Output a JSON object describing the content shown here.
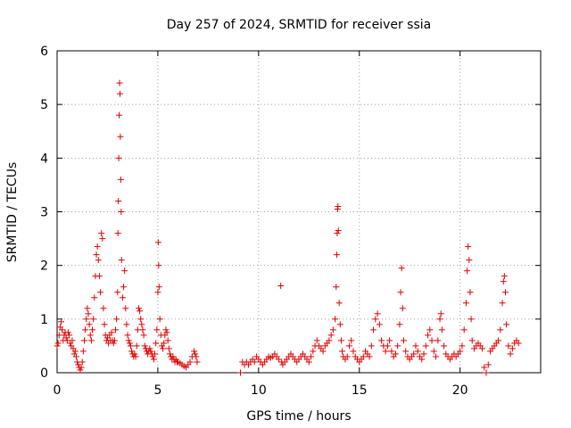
{
  "chart_data": {
    "type": "scatter",
    "title": "Day 257 of 2024, SRMTID for receiver ssia",
    "xlabel": "GPS time / hours",
    "ylabel": "SRMTID / TECUs",
    "xlim": [
      0,
      24
    ],
    "ylim": [
      0,
      6
    ],
    "xticks": [
      0,
      5,
      10,
      15,
      20
    ],
    "yticks": [
      0,
      1,
      2,
      3,
      4,
      5,
      6
    ],
    "xtick_labels": [
      "0",
      "5",
      "10",
      "15",
      "20"
    ],
    "ytick_labels": [
      "0",
      "1",
      "2",
      "3",
      "4",
      "5",
      "6"
    ],
    "grid": true,
    "marker": "+",
    "marker_color": "#e00000",
    "series": [
      {
        "name": "SRMTID",
        "points": [
          [
            0.0,
            0.5
          ],
          [
            0.05,
            0.55
          ],
          [
            0.1,
            0.7
          ],
          [
            0.15,
            0.85
          ],
          [
            0.2,
            0.95
          ],
          [
            0.25,
            0.8
          ],
          [
            0.3,
            0.6
          ],
          [
            0.35,
            0.7
          ],
          [
            0.4,
            0.75
          ],
          [
            0.45,
            0.65
          ],
          [
            0.5,
            0.6
          ],
          [
            0.55,
            0.75
          ],
          [
            0.6,
            0.7
          ],
          [
            0.65,
            0.55
          ],
          [
            0.7,
            0.5
          ],
          [
            0.75,
            0.6
          ],
          [
            0.8,
            0.45
          ],
          [
            0.85,
            0.35
          ],
          [
            0.9,
            0.4
          ],
          [
            0.95,
            0.3
          ],
          [
            1.0,
            0.2
          ],
          [
            1.05,
            0.15
          ],
          [
            1.1,
            0.1
          ],
          [
            1.15,
            0.05
          ],
          [
            1.2,
            0.1
          ],
          [
            1.25,
            0.2
          ],
          [
            1.3,
            0.4
          ],
          [
            1.35,
            0.6
          ],
          [
            1.4,
            0.8
          ],
          [
            1.45,
            1.0
          ],
          [
            1.5,
            1.2
          ],
          [
            1.55,
            1.1
          ],
          [
            1.6,
            0.9
          ],
          [
            1.65,
            0.7
          ],
          [
            1.7,
            0.6
          ],
          [
            1.75,
            0.8
          ],
          [
            1.8,
            1.0
          ],
          [
            1.85,
            1.4
          ],
          [
            1.9,
            1.8
          ],
          [
            1.95,
            2.2
          ],
          [
            2.0,
            2.35
          ],
          [
            2.05,
            2.1
          ],
          [
            2.1,
            1.8
          ],
          [
            2.15,
            1.5
          ],
          [
            2.2,
            2.6
          ],
          [
            2.25,
            2.5
          ],
          [
            2.3,
            1.2
          ],
          [
            2.35,
            0.9
          ],
          [
            2.4,
            0.7
          ],
          [
            2.45,
            0.6
          ],
          [
            2.5,
            0.65
          ],
          [
            2.55,
            0.55
          ],
          [
            2.6,
            0.7
          ],
          [
            2.65,
            0.6
          ],
          [
            2.7,
            0.75
          ],
          [
            2.75,
            0.6
          ],
          [
            2.8,
            0.55
          ],
          [
            2.85,
            0.6
          ],
          [
            2.9,
            0.8
          ],
          [
            2.95,
            1.0
          ],
          [
            3.0,
            1.5
          ],
          [
            3.02,
            2.6
          ],
          [
            3.04,
            3.2
          ],
          [
            3.06,
            4.0
          ],
          [
            3.08,
            4.8
          ],
          [
            3.1,
            5.4
          ],
          [
            3.12,
            5.2
          ],
          [
            3.14,
            4.4
          ],
          [
            3.16,
            3.6
          ],
          [
            3.18,
            3.0
          ],
          [
            3.2,
            2.1
          ],
          [
            3.25,
            1.4
          ],
          [
            3.3,
            1.6
          ],
          [
            3.35,
            1.9
          ],
          [
            3.4,
            1.2
          ],
          [
            3.45,
            0.9
          ],
          [
            3.5,
            0.7
          ],
          [
            3.55,
            0.6
          ],
          [
            3.6,
            0.55
          ],
          [
            3.65,
            0.5
          ],
          [
            3.7,
            0.4
          ],
          [
            3.75,
            0.35
          ],
          [
            3.8,
            0.3
          ],
          [
            3.85,
            0.35
          ],
          [
            3.9,
            0.3
          ],
          [
            3.95,
            0.5
          ],
          [
            4.0,
            0.8
          ],
          [
            4.05,
            1.2
          ],
          [
            4.1,
            1.15
          ],
          [
            4.15,
            1.0
          ],
          [
            4.2,
            0.9
          ],
          [
            4.25,
            0.8
          ],
          [
            4.3,
            0.7
          ],
          [
            4.35,
            0.5
          ],
          [
            4.4,
            0.45
          ],
          [
            4.45,
            0.4
          ],
          [
            4.5,
            0.35
          ],
          [
            4.55,
            0.4
          ],
          [
            4.6,
            0.45
          ],
          [
            4.65,
            0.4
          ],
          [
            4.7,
            0.35
          ],
          [
            4.75,
            0.3
          ],
          [
            4.8,
            0.25
          ],
          [
            4.85,
            0.35
          ],
          [
            4.9,
            0.55
          ],
          [
            4.95,
            0.8
          ],
          [
            5.0,
            1.5
          ],
          [
            5.02,
            2.43
          ],
          [
            5.04,
            2.0
          ],
          [
            5.06,
            1.6
          ],
          [
            5.1,
            1.0
          ],
          [
            5.15,
            0.7
          ],
          [
            5.2,
            0.5
          ],
          [
            5.25,
            0.45
          ],
          [
            5.3,
            0.55
          ],
          [
            5.35,
            0.7
          ],
          [
            5.4,
            0.8
          ],
          [
            5.45,
            0.75
          ],
          [
            5.5,
            0.6
          ],
          [
            5.55,
            0.45
          ],
          [
            5.6,
            0.35
          ],
          [
            5.65,
            0.3
          ],
          [
            5.7,
            0.25
          ],
          [
            5.75,
            0.3
          ],
          [
            5.8,
            0.25
          ],
          [
            5.85,
            0.2
          ],
          [
            5.9,
            0.25
          ],
          [
            5.95,
            0.2
          ],
          [
            6.0,
            0.2
          ],
          [
            6.1,
            0.18
          ],
          [
            6.2,
            0.15
          ],
          [
            6.3,
            0.12
          ],
          [
            6.4,
            0.1
          ],
          [
            6.5,
            0.15
          ],
          [
            6.6,
            0.2
          ],
          [
            6.7,
            0.3
          ],
          [
            6.8,
            0.4
          ],
          [
            6.85,
            0.35
          ],
          [
            6.9,
            0.3
          ],
          [
            6.95,
            0.2
          ],
          [
            9.1,
            0.0
          ],
          [
            9.2,
            0.2
          ],
          [
            9.3,
            0.15
          ],
          [
            9.4,
            0.2
          ],
          [
            9.5,
            0.15
          ],
          [
            9.6,
            0.2
          ],
          [
            9.7,
            0.25
          ],
          [
            9.8,
            0.2
          ],
          [
            9.9,
            0.3
          ],
          [
            10.0,
            0.25
          ],
          [
            10.1,
            0.2
          ],
          [
            10.2,
            0.15
          ],
          [
            10.3,
            0.2
          ],
          [
            10.4,
            0.25
          ],
          [
            10.5,
            0.3
          ],
          [
            10.6,
            0.28
          ],
          [
            10.7,
            0.3
          ],
          [
            10.8,
            0.35
          ],
          [
            10.9,
            0.3
          ],
          [
            11.0,
            0.25
          ],
          [
            11.1,
            1.62
          ],
          [
            11.15,
            0.2
          ],
          [
            11.2,
            0.15
          ],
          [
            11.3,
            0.2
          ],
          [
            11.4,
            0.25
          ],
          [
            11.5,
            0.3
          ],
          [
            11.6,
            0.35
          ],
          [
            11.7,
            0.3
          ],
          [
            11.8,
            0.25
          ],
          [
            11.9,
            0.2
          ],
          [
            12.0,
            0.25
          ],
          [
            12.1,
            0.3
          ],
          [
            12.2,
            0.35
          ],
          [
            12.3,
            0.3
          ],
          [
            12.4,
            0.25
          ],
          [
            12.5,
            0.2
          ],
          [
            12.6,
            0.3
          ],
          [
            12.7,
            0.4
          ],
          [
            12.8,
            0.5
          ],
          [
            12.9,
            0.6
          ],
          [
            13.0,
            0.5
          ],
          [
            13.1,
            0.45
          ],
          [
            13.2,
            0.4
          ],
          [
            13.3,
            0.5
          ],
          [
            13.4,
            0.55
          ],
          [
            13.5,
            0.6
          ],
          [
            13.6,
            0.7
          ],
          [
            13.7,
            0.8
          ],
          [
            13.8,
            1.0
          ],
          [
            13.85,
            1.6
          ],
          [
            13.88,
            2.2
          ],
          [
            13.9,
            2.6
          ],
          [
            13.92,
            3.05
          ],
          [
            13.94,
            3.1
          ],
          [
            13.96,
            2.65
          ],
          [
            14.0,
            1.3
          ],
          [
            14.05,
            0.9
          ],
          [
            14.1,
            0.6
          ],
          [
            14.15,
            0.4
          ],
          [
            14.2,
            0.3
          ],
          [
            14.3,
            0.25
          ],
          [
            14.4,
            0.3
          ],
          [
            14.5,
            0.5
          ],
          [
            14.6,
            0.6
          ],
          [
            14.7,
            0.4
          ],
          [
            14.8,
            0.3
          ],
          [
            14.9,
            0.25
          ],
          [
            15.0,
            0.2
          ],
          [
            15.1,
            0.25
          ],
          [
            15.2,
            0.3
          ],
          [
            15.3,
            0.4
          ],
          [
            15.4,
            0.35
          ],
          [
            15.5,
            0.3
          ],
          [
            15.6,
            0.5
          ],
          [
            15.7,
            0.8
          ],
          [
            15.8,
            1.0
          ],
          [
            15.9,
            1.1
          ],
          [
            16.0,
            0.9
          ],
          [
            16.1,
            0.6
          ],
          [
            16.2,
            0.5
          ],
          [
            16.3,
            0.4
          ],
          [
            16.4,
            0.5
          ],
          [
            16.5,
            0.6
          ],
          [
            16.6,
            0.4
          ],
          [
            16.7,
            0.3
          ],
          [
            16.8,
            0.35
          ],
          [
            16.9,
            0.5
          ],
          [
            17.0,
            0.9
          ],
          [
            17.05,
            1.5
          ],
          [
            17.1,
            1.95
          ],
          [
            17.15,
            1.2
          ],
          [
            17.2,
            0.6
          ],
          [
            17.3,
            0.4
          ],
          [
            17.4,
            0.3
          ],
          [
            17.5,
            0.25
          ],
          [
            17.6,
            0.3
          ],
          [
            17.7,
            0.35
          ],
          [
            17.8,
            0.5
          ],
          [
            17.9,
            0.4
          ],
          [
            18.0,
            0.3
          ],
          [
            18.1,
            0.25
          ],
          [
            18.2,
            0.35
          ],
          [
            18.3,
            0.5
          ],
          [
            18.4,
            0.7
          ],
          [
            18.5,
            0.8
          ],
          [
            18.6,
            0.6
          ],
          [
            18.7,
            0.4
          ],
          [
            18.8,
            0.3
          ],
          [
            18.9,
            0.6
          ],
          [
            19.0,
            1.0
          ],
          [
            19.05,
            1.1
          ],
          [
            19.1,
            0.8
          ],
          [
            19.2,
            0.5
          ],
          [
            19.3,
            0.35
          ],
          [
            19.4,
            0.3
          ],
          [
            19.5,
            0.25
          ],
          [
            19.6,
            0.3
          ],
          [
            19.7,
            0.35
          ],
          [
            19.8,
            0.3
          ],
          [
            19.9,
            0.35
          ],
          [
            20.0,
            0.4
          ],
          [
            20.1,
            0.5
          ],
          [
            20.2,
            0.8
          ],
          [
            20.3,
            1.3
          ],
          [
            20.35,
            1.9
          ],
          [
            20.4,
            2.35
          ],
          [
            20.45,
            2.1
          ],
          [
            20.5,
            1.5
          ],
          [
            20.55,
            1.0
          ],
          [
            20.6,
            0.6
          ],
          [
            20.7,
            0.45
          ],
          [
            20.8,
            0.5
          ],
          [
            20.9,
            0.55
          ],
          [
            21.0,
            0.5
          ],
          [
            21.1,
            0.45
          ],
          [
            21.2,
            0.1
          ],
          [
            21.3,
            0.0
          ],
          [
            21.4,
            0.15
          ],
          [
            21.5,
            0.4
          ],
          [
            21.6,
            0.45
          ],
          [
            21.7,
            0.5
          ],
          [
            21.8,
            0.55
          ],
          [
            21.9,
            0.6
          ],
          [
            22.0,
            0.8
          ],
          [
            22.1,
            1.3
          ],
          [
            22.15,
            1.7
          ],
          [
            22.2,
            1.8
          ],
          [
            22.25,
            1.5
          ],
          [
            22.3,
            0.9
          ],
          [
            22.4,
            0.5
          ],
          [
            22.5,
            0.35
          ],
          [
            22.6,
            0.45
          ],
          [
            22.7,
            0.55
          ],
          [
            22.8,
            0.6
          ],
          [
            22.9,
            0.55
          ]
        ]
      }
    ]
  }
}
